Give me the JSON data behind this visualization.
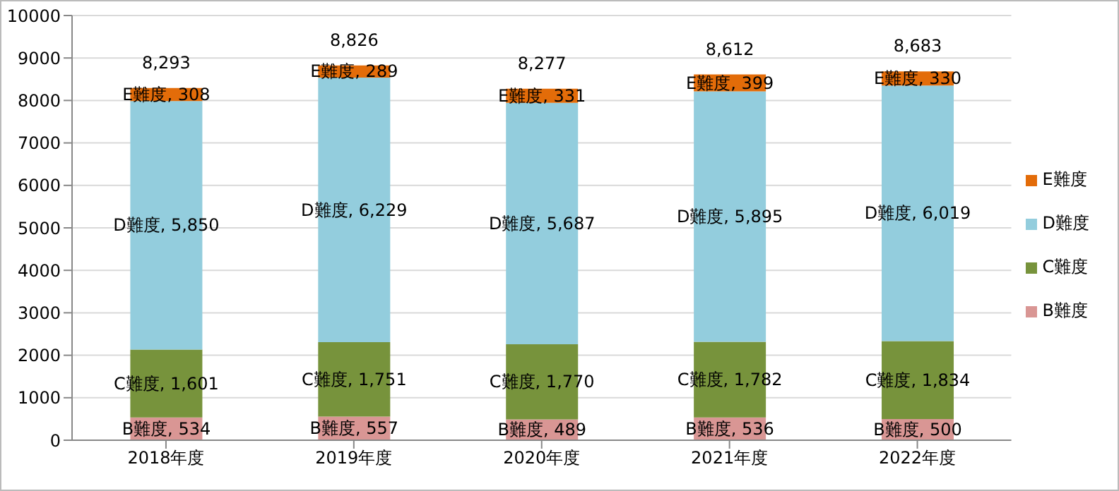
{
  "chart_data": {
    "type": "bar",
    "stacked": true,
    "categories": [
      "2018年度",
      "2019年度",
      "2020年度",
      "2021年度",
      "2022年度"
    ],
    "series": [
      {
        "name": "B難度",
        "color": "#d99694",
        "values": [
          534,
          557,
          489,
          536,
          500
        ],
        "value_labels": [
          "B難度, 534",
          "B難度, 557",
          "B難度, 489",
          "B難度, 536",
          "B難度, 500"
        ]
      },
      {
        "name": "C難度",
        "color": "#77933c",
        "values": [
          1601,
          1751,
          1770,
          1782,
          1834
        ],
        "value_labels": [
          "C難度, 1,601",
          "C難度, 1,751",
          "C難度, 1,770",
          "C難度, 1,782",
          "C難度, 1,834"
        ]
      },
      {
        "name": "D難度",
        "color": "#93cddd",
        "values": [
          5850,
          6229,
          5687,
          5895,
          6019
        ],
        "value_labels": [
          "D難度, 5,850",
          "D難度, 6,229",
          "D難度, 5,687",
          "D難度, 5,895",
          "D難度, 6,019"
        ]
      },
      {
        "name": "E難度",
        "color": "#e36c09",
        "values": [
          308,
          289,
          331,
          399,
          330
        ],
        "value_labels": [
          "E難度, 308",
          "E難度, 289",
          "E難度, 331",
          "E難度, 399",
          "E難度, 330"
        ]
      }
    ],
    "totals": [
      "8,293",
      "8,826",
      "8,277",
      "8,612",
      "8,683"
    ],
    "ylim": [
      0,
      10000
    ],
    "yticks": [
      0,
      1000,
      2000,
      3000,
      4000,
      5000,
      6000,
      7000,
      8000,
      9000,
      10000
    ],
    "grid": "y",
    "legend": "right"
  }
}
